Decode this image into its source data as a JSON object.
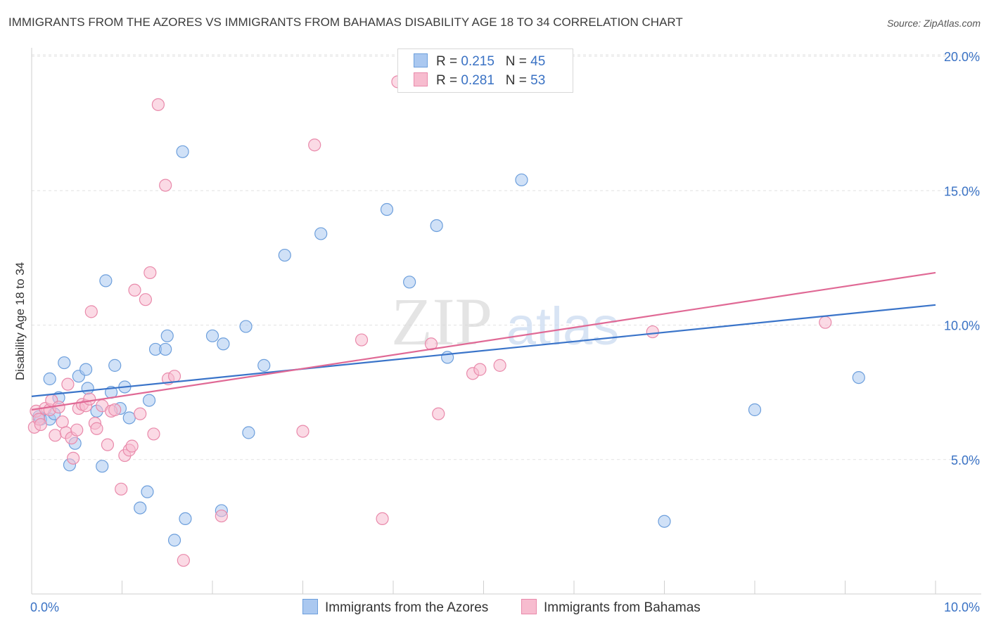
{
  "title": "IMMIGRANTS FROM THE AZORES VS IMMIGRANTS FROM BAHAMAS DISABILITY AGE 18 TO 34 CORRELATION CHART",
  "source": "Source: ZipAtlas.com",
  "watermark": {
    "zip": "ZIP",
    "atlas": "atlas"
  },
  "legend": {
    "series1": {
      "r_label": "R = ",
      "r_value": "0.215",
      "n_label": "N = ",
      "n_value": "45"
    },
    "series2": {
      "r_label": "R = ",
      "r_value": "0.281",
      "n_label": "N = ",
      "n_value": "53"
    }
  },
  "colors": {
    "azores_fill": "#aac8f0",
    "azores_stroke": "#6d9fdc",
    "azores_line": "#3a74c9",
    "bahamas_fill": "#f7bccf",
    "bahamas_stroke": "#e98aab",
    "bahamas_line": "#e06995",
    "axis_label": "#3a72c4",
    "grid": "#e2e2e2"
  },
  "chart_data": {
    "type": "scatter",
    "title": "IMMIGRANTS FROM THE AZORES VS IMMIGRANTS FROM BAHAMAS DISABILITY AGE 18 TO 34 CORRELATION CHART",
    "xlabel": "",
    "ylabel": "Disability Age 18 to 34",
    "xlim": [
      0,
      10
    ],
    "ylim": [
      0,
      20.5
    ],
    "x_tick_labels": [
      {
        "value": 0,
        "label": "0.0%"
      },
      {
        "value": 10,
        "label": "10.0%"
      }
    ],
    "y_tick_labels": [
      {
        "value": 5,
        "label": "5.0%"
      },
      {
        "value": 10,
        "label": "10.0%"
      },
      {
        "value": 15,
        "label": "15.0%"
      },
      {
        "value": 20,
        "label": "20.0%"
      }
    ],
    "x_minor_ticks": [
      0,
      1,
      2,
      3,
      4,
      5,
      6,
      7,
      8,
      9,
      10
    ],
    "legend_position": "top-center",
    "series": [
      {
        "name": "Immigrants from the Azores",
        "r": 0.215,
        "n": 45,
        "trend": {
          "x": [
            0,
            10
          ],
          "y": [
            7.35,
            10.75
          ]
        },
        "points": [
          {
            "x": 0.08,
            "y": 6.6
          },
          {
            "x": 0.1,
            "y": 6.5
          },
          {
            "x": 0.2,
            "y": 6.5
          },
          {
            "x": 0.2,
            "y": 8.0
          },
          {
            "x": 0.25,
            "y": 6.7
          },
          {
            "x": 0.3,
            "y": 7.3
          },
          {
            "x": 0.36,
            "y": 8.6
          },
          {
            "x": 0.42,
            "y": 4.8
          },
          {
            "x": 0.48,
            "y": 5.6
          },
          {
            "x": 0.52,
            "y": 8.1
          },
          {
            "x": 0.6,
            "y": 8.35
          },
          {
            "x": 0.62,
            "y": 7.65
          },
          {
            "x": 0.72,
            "y": 6.8
          },
          {
            "x": 0.78,
            "y": 4.75
          },
          {
            "x": 0.82,
            "y": 11.65
          },
          {
            "x": 0.88,
            "y": 7.5
          },
          {
            "x": 0.92,
            "y": 8.5
          },
          {
            "x": 0.98,
            "y": 6.9
          },
          {
            "x": 1.03,
            "y": 7.7
          },
          {
            "x": 1.08,
            "y": 6.55
          },
          {
            "x": 1.2,
            "y": 3.2
          },
          {
            "x": 1.28,
            "y": 3.8
          },
          {
            "x": 1.3,
            "y": 7.2
          },
          {
            "x": 1.37,
            "y": 9.1
          },
          {
            "x": 1.48,
            "y": 9.1
          },
          {
            "x": 1.5,
            "y": 9.6
          },
          {
            "x": 1.58,
            "y": 2.0
          },
          {
            "x": 1.67,
            "y": 16.45
          },
          {
            "x": 1.7,
            "y": 2.8
          },
          {
            "x": 2.0,
            "y": 9.6
          },
          {
            "x": 2.1,
            "y": 3.1
          },
          {
            "x": 2.12,
            "y": 9.3
          },
          {
            "x": 2.37,
            "y": 9.95
          },
          {
            "x": 2.4,
            "y": 6.0
          },
          {
            "x": 2.57,
            "y": 8.5
          },
          {
            "x": 2.8,
            "y": 12.6
          },
          {
            "x": 3.2,
            "y": 13.4
          },
          {
            "x": 3.93,
            "y": 14.3
          },
          {
            "x": 4.18,
            "y": 11.6
          },
          {
            "x": 4.48,
            "y": 13.7
          },
          {
            "x": 4.6,
            "y": 8.8
          },
          {
            "x": 5.42,
            "y": 15.4
          },
          {
            "x": 7.0,
            "y": 2.7
          },
          {
            "x": 8.0,
            "y": 6.85
          },
          {
            "x": 9.15,
            "y": 8.05
          }
        ]
      },
      {
        "name": "Immigrants from Bahamas",
        "r": 0.281,
        "n": 53,
        "trend": {
          "x": [
            0,
            10
          ],
          "y": [
            6.85,
            11.95
          ]
        },
        "points": [
          {
            "x": 0.03,
            "y": 6.2
          },
          {
            "x": 0.05,
            "y": 6.8
          },
          {
            "x": 0.08,
            "y": 6.5
          },
          {
            "x": 0.1,
            "y": 6.3
          },
          {
            "x": 0.15,
            "y": 6.9
          },
          {
            "x": 0.2,
            "y": 6.85
          },
          {
            "x": 0.22,
            "y": 7.2
          },
          {
            "x": 0.26,
            "y": 5.9
          },
          {
            "x": 0.3,
            "y": 6.95
          },
          {
            "x": 0.34,
            "y": 6.4
          },
          {
            "x": 0.38,
            "y": 6.0
          },
          {
            "x": 0.4,
            "y": 7.8
          },
          {
            "x": 0.44,
            "y": 5.8
          },
          {
            "x": 0.46,
            "y": 5.05
          },
          {
            "x": 0.5,
            "y": 6.1
          },
          {
            "x": 0.52,
            "y": 6.9
          },
          {
            "x": 0.56,
            "y": 7.05
          },
          {
            "x": 0.6,
            "y": 7.0
          },
          {
            "x": 0.64,
            "y": 7.25
          },
          {
            "x": 0.66,
            "y": 10.5
          },
          {
            "x": 0.7,
            "y": 6.35
          },
          {
            "x": 0.72,
            "y": 6.15
          },
          {
            "x": 0.78,
            "y": 7.0
          },
          {
            "x": 0.84,
            "y": 5.55
          },
          {
            "x": 0.88,
            "y": 6.8
          },
          {
            "x": 0.92,
            "y": 6.85
          },
          {
            "x": 0.99,
            "y": 3.9
          },
          {
            "x": 1.03,
            "y": 5.15
          },
          {
            "x": 1.08,
            "y": 5.35
          },
          {
            "x": 1.11,
            "y": 5.5
          },
          {
            "x": 1.14,
            "y": 11.3
          },
          {
            "x": 1.2,
            "y": 6.7
          },
          {
            "x": 1.26,
            "y": 10.95
          },
          {
            "x": 1.31,
            "y": 11.95
          },
          {
            "x": 1.35,
            "y": 5.95
          },
          {
            "x": 1.4,
            "y": 18.2
          },
          {
            "x": 1.48,
            "y": 15.2
          },
          {
            "x": 1.51,
            "y": 8.0
          },
          {
            "x": 1.58,
            "y": 8.1
          },
          {
            "x": 1.68,
            "y": 1.25
          },
          {
            "x": 2.1,
            "y": 2.9
          },
          {
            "x": 3.0,
            "y": 6.05
          },
          {
            "x": 3.13,
            "y": 16.7
          },
          {
            "x": 3.65,
            "y": 9.45
          },
          {
            "x": 3.88,
            "y": 2.8
          },
          {
            "x": 4.05,
            "y": 19.05
          },
          {
            "x": 4.42,
            "y": 9.3
          },
          {
            "x": 4.5,
            "y": 6.7
          },
          {
            "x": 4.88,
            "y": 8.2
          },
          {
            "x": 4.96,
            "y": 8.35
          },
          {
            "x": 5.18,
            "y": 8.5
          },
          {
            "x": 6.87,
            "y": 9.75
          },
          {
            "x": 8.78,
            "y": 10.1
          }
        ]
      }
    ]
  }
}
